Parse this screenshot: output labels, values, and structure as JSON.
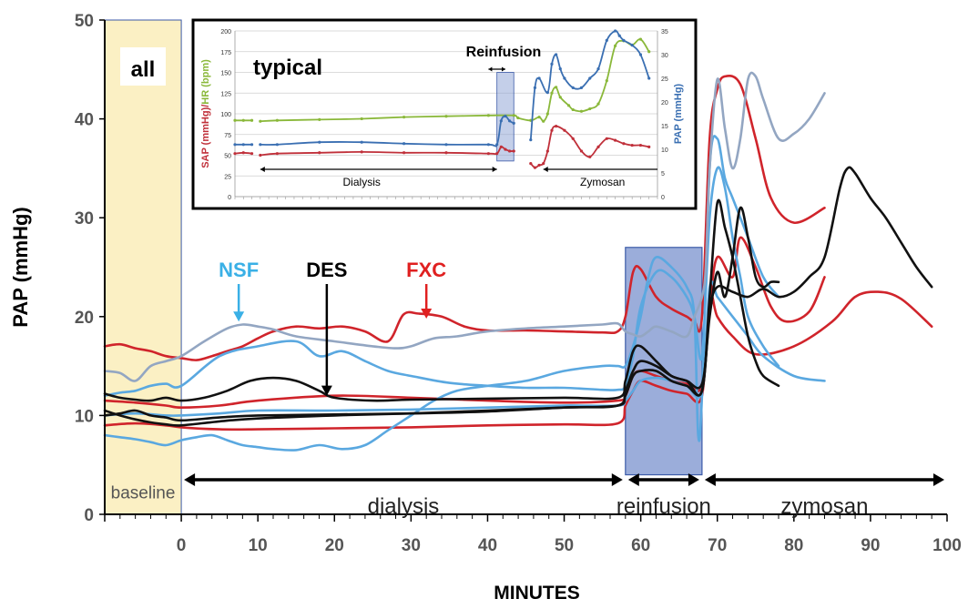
{
  "chart_data": [
    {
      "type": "line",
      "ylabel": "PAP (mmHg)",
      "xlabel": "MINUTES",
      "xlim": [
        -10,
        100
      ],
      "ylim": [
        0,
        50
      ],
      "x_ticks": [
        0,
        10,
        20,
        30,
        40,
        50,
        60,
        70,
        80,
        90,
        100
      ],
      "y_ticks": [
        0,
        10,
        20,
        30,
        40,
        50
      ],
      "grid": false,
      "box_label": "all",
      "regions": [
        {
          "label": "baseline",
          "x_start": -10,
          "x_end": 0,
          "color": "#fbf0c4"
        },
        {
          "label": "reinfusion",
          "x_start": 58,
          "x_end": 68,
          "color": "#8a9fd4"
        }
      ],
      "phases": [
        {
          "label": "dialysis",
          "x_start": 0,
          "x_end": 58,
          "y": 3.5
        },
        {
          "label": "reinfusion",
          "x_start": 58,
          "x_end": 68,
          "y": 3.5
        },
        {
          "label": "zymosan",
          "x_start": 68,
          "x_end": 100,
          "y": 3.5
        }
      ],
      "annotations": [
        {
          "text": "NSF",
          "x": 7.5,
          "y": 19.5,
          "color": "#3ab0e6"
        },
        {
          "text": "DES",
          "x": 19,
          "y": 12,
          "color": "#000000"
        },
        {
          "text": "FXC",
          "x": 32,
          "y": 19.8,
          "color": "#e02020"
        }
      ],
      "series": [
        {
          "group": "FXC",
          "color": "#d0242b",
          "x": [
            -10,
            -8,
            -6,
            -4,
            -2,
            0,
            2,
            4,
            6,
            8,
            10,
            12,
            15,
            18,
            21,
            24,
            27,
            29,
            31,
            34,
            37,
            40,
            45,
            50,
            55,
            57,
            58,
            59,
            60,
            62,
            64,
            66,
            67,
            68,
            69,
            70,
            71,
            73,
            75,
            77,
            80,
            84
          ],
          "y": [
            17.0,
            17.2,
            16.8,
            16.5,
            16.0,
            15.8,
            15.6,
            16.0,
            16.5,
            17.0,
            17.8,
            18.5,
            19.0,
            18.8,
            19.0,
            18.5,
            17.5,
            20.2,
            20.3,
            20.0,
            19.0,
            18.6,
            18.6,
            18.5,
            18.4,
            18.5,
            20.0,
            24.5,
            24.8,
            22.0,
            20.8,
            20.0,
            19.5,
            20.0,
            38.0,
            43.0,
            44.3,
            43.5,
            38.0,
            32.0,
            29.5,
            31.0
          ]
        },
        {
          "group": "FXC",
          "color": "#d0242b",
          "x": [
            -10,
            -6,
            -2,
            0,
            5,
            10,
            20,
            30,
            40,
            50,
            57,
            58,
            59,
            60,
            62,
            64,
            66,
            68,
            69,
            70,
            72,
            73,
            75,
            77,
            79,
            82,
            84
          ],
          "y": [
            11.5,
            11.3,
            11.0,
            10.8,
            11.0,
            11.5,
            12.0,
            11.8,
            11.5,
            11.3,
            11.5,
            12.0,
            14.0,
            14.5,
            14.0,
            13.5,
            13.2,
            13.0,
            21.0,
            26.0,
            24.0,
            28.0,
            25.0,
            21.0,
            19.5,
            20.5,
            24.0
          ]
        },
        {
          "group": "FXC",
          "color": "#d0242b",
          "x": [
            -10,
            -6,
            -2,
            0,
            5,
            10,
            20,
            30,
            40,
            50,
            57,
            58,
            59,
            60,
            62,
            64,
            66,
            68,
            69,
            70,
            72,
            75,
            80,
            85,
            88,
            91,
            94,
            98
          ],
          "y": [
            9.0,
            9.2,
            9.0,
            8.8,
            8.6,
            8.6,
            8.7,
            8.8,
            9.0,
            9.1,
            9.2,
            11.0,
            12.5,
            13.5,
            13.0,
            12.5,
            12.2,
            12.0,
            22.0,
            20.0,
            18.0,
            16.2,
            17.0,
            19.5,
            22.0,
            22.5,
            21.8,
            19.0
          ]
        },
        {
          "group": "NSF",
          "color": "#5aa8e0",
          "x": [
            -10,
            -8,
            -6,
            -4,
            -2,
            0,
            2,
            4,
            6,
            8,
            10,
            12,
            15,
            18,
            21,
            24,
            27,
            30,
            33,
            36,
            40,
            45,
            50,
            55,
            57,
            58,
            59,
            60,
            61,
            62,
            64,
            66,
            67,
            67.5,
            68,
            69,
            70,
            71,
            72,
            74,
            76,
            78
          ],
          "y": [
            8.0,
            7.8,
            7.6,
            7.3,
            7.0,
            7.5,
            7.8,
            8.0,
            7.5,
            7.0,
            6.8,
            6.6,
            6.5,
            7.0,
            6.6,
            7.0,
            8.5,
            10.0,
            11.5,
            12.5,
            13.0,
            13.5,
            14.5,
            15.0,
            15.0,
            15.0,
            17.0,
            20.0,
            24.0,
            26.0,
            25.0,
            23.0,
            20.0,
            8.0,
            12.0,
            35.0,
            38.0,
            34.0,
            32.0,
            28.0,
            24.0,
            22.0
          ]
        },
        {
          "group": "NSF",
          "color": "#5aa8e0",
          "x": [
            -10,
            -8,
            -6,
            -4,
            -2,
            0,
            5,
            10,
            15,
            18,
            21,
            24,
            27,
            30,
            35,
            40,
            45,
            50,
            55,
            57,
            58,
            59,
            60,
            62,
            64,
            66,
            67,
            68,
            69,
            70,
            71,
            72,
            73,
            74,
            76,
            78
          ],
          "y": [
            12.0,
            12.3,
            12.5,
            13.0,
            13.2,
            13.0,
            16.0,
            17.0,
            17.5,
            16.0,
            16.5,
            15.5,
            14.5,
            14.0,
            13.3,
            13.0,
            12.8,
            12.8,
            12.6,
            12.6,
            13.0,
            16.0,
            21.0,
            24.5,
            24.0,
            22.0,
            20.0,
            16.0,
            30.0,
            35.0,
            33.0,
            28.0,
            24.0,
            20.0,
            17.0,
            15.0
          ]
        },
        {
          "group": "NSF",
          "color": "#5aa8e0",
          "x": [
            -10,
            -6,
            -2,
            0,
            5,
            10,
            20,
            30,
            40,
            50,
            57,
            58,
            59,
            60,
            62,
            64,
            66,
            68,
            69,
            70,
            71,
            72,
            74,
            76,
            80,
            84
          ],
          "y": [
            10.0,
            10.2,
            10.0,
            10.0,
            10.2,
            10.5,
            10.5,
            10.6,
            10.8,
            11.0,
            11.0,
            11.5,
            12.5,
            13.5,
            13.8,
            13.5,
            13.0,
            12.5,
            23.0,
            22.0,
            21.0,
            20.0,
            18.0,
            16.0,
            14.0,
            13.5
          ]
        },
        {
          "group": "NSF",
          "color": "#93a6c2",
          "x": [
            -10,
            -8,
            -6,
            -4,
            -2,
            0,
            3,
            6,
            8,
            10,
            12,
            15,
            20,
            25,
            28,
            30,
            33,
            36,
            40,
            45,
            50,
            55,
            57,
            58,
            59,
            60,
            61,
            62,
            64,
            66,
            67,
            68,
            68.5,
            69,
            70,
            71,
            72,
            73,
            74,
            75,
            76,
            78,
            80,
            82,
            84
          ],
          "y": [
            14.5,
            14.3,
            13.5,
            15.0,
            15.5,
            16.0,
            17.5,
            18.8,
            19.2,
            19.0,
            18.7,
            18.0,
            17.5,
            17.0,
            16.8,
            17.0,
            17.8,
            18.0,
            18.5,
            18.8,
            19.0,
            19.2,
            19.3,
            18.5,
            18.2,
            18.0,
            18.5,
            19.0,
            18.5,
            18.0,
            20.0,
            22.0,
            25.0,
            35.0,
            44.0,
            39.0,
            35.0,
            38.0,
            44.0,
            44.3,
            42.0,
            38.0,
            38.5,
            40.0,
            42.6
          ]
        },
        {
          "group": "DES",
          "color": "#111111",
          "x": [
            -10,
            -8,
            -6,
            -4,
            -2,
            0,
            3,
            6,
            9,
            12,
            15,
            18,
            20,
            25,
            30,
            40,
            50,
            57,
            58,
            59,
            60,
            62,
            64,
            66,
            68,
            69,
            70,
            71,
            72,
            73,
            74,
            75,
            76,
            78
          ],
          "y": [
            12.2,
            11.8,
            11.6,
            11.5,
            11.8,
            11.5,
            11.8,
            12.5,
            13.5,
            13.8,
            13.5,
            12.5,
            11.8,
            11.5,
            11.6,
            11.7,
            11.8,
            11.8,
            13.5,
            16.5,
            17.0,
            15.5,
            14.0,
            13.5,
            12.5,
            22.0,
            31.5,
            29.0,
            26.0,
            22.0,
            18.0,
            15.5,
            14.0,
            13.0
          ]
        },
        {
          "group": "DES",
          "color": "#111111",
          "x": [
            -10,
            -8,
            -6,
            -4,
            -2,
            0,
            5,
            10,
            20,
            30,
            40,
            50,
            57,
            58,
            59,
            60,
            62,
            64,
            66,
            68,
            69,
            70,
            71,
            72,
            73,
            74,
            75,
            76,
            77,
            78
          ],
          "y": [
            10.0,
            10.2,
            10.5,
            10.0,
            9.8,
            9.5,
            9.8,
            10.0,
            10.1,
            10.2,
            10.4,
            10.8,
            11.0,
            12.5,
            14.5,
            15.5,
            15.0,
            14.0,
            13.5,
            13.2,
            20.0,
            24.5,
            22.0,
            26.0,
            31.0,
            28.0,
            24.0,
            23.0,
            23.5,
            23.5
          ]
        },
        {
          "group": "DES",
          "color": "#111111",
          "x": [
            -10,
            -8,
            -6,
            -4,
            -2,
            0,
            5,
            10,
            20,
            30,
            40,
            50,
            57,
            58,
            59,
            60,
            62,
            64,
            66,
            68,
            69,
            70,
            72,
            74,
            76,
            78,
            80,
            82,
            84,
            86,
            87,
            88,
            90,
            92,
            94,
            96,
            98
          ],
          "y": [
            10.5,
            10.0,
            9.6,
            9.3,
            9.1,
            9.0,
            9.4,
            9.7,
            10.0,
            10.2,
            10.5,
            10.8,
            11.0,
            12.0,
            14.0,
            14.5,
            14.5,
            13.5,
            13.0,
            12.5,
            20.5,
            23.0,
            22.5,
            22.0,
            22.8,
            22.0,
            22.5,
            24.0,
            26.0,
            33.0,
            35.0,
            34.5,
            32.0,
            30.0,
            27.5,
            25.0,
            23.0
          ]
        }
      ]
    },
    {
      "type": "line",
      "title": "typical",
      "ylabel_left": "SAP (mmHg)/HR (bpm)",
      "ylabel_left_parts": [
        "SAP (mmHg)",
        "/",
        "HR (bpm)"
      ],
      "ylabel_right": "PAP (mmHg)",
      "ylim_left": [
        0,
        200
      ],
      "ylim_right": [
        0,
        35
      ],
      "y_ticks_left": [
        0,
        25,
        50,
        75,
        100,
        125,
        150,
        175,
        200
      ],
      "y_ticks_right": [
        0,
        5,
        10,
        15,
        20,
        25,
        30,
        35
      ],
      "annotations": [
        {
          "text": "Reinfusion",
          "color": "#000000"
        },
        {
          "text": "Dialysis",
          "color": "#000000"
        },
        {
          "text": "Zymosan",
          "color": "#000000"
        }
      ],
      "series": [
        {
          "name": "HR",
          "color": "#8ab83a",
          "axis": "left",
          "x": [
            0,
            2,
            4,
            5,
            6,
            10,
            20,
            30,
            40,
            50,
            60,
            66,
            67,
            70,
            72,
            73,
            74,
            75,
            76,
            77,
            79,
            80,
            82,
            84,
            86,
            88,
            90,
            92,
            94,
            96,
            98
          ],
          "y": [
            92,
            92,
            92,
            null,
            91,
            92,
            93,
            94,
            96,
            97,
            98,
            98,
            95,
            92,
            96,
            91,
            100,
            125,
            132,
            120,
            110,
            105,
            103,
            106,
            112,
            140,
            182,
            188,
            183,
            190,
            175
          ]
        },
        {
          "name": "SAP",
          "color": "#c0303a",
          "axis": "left",
          "x": [
            0,
            2,
            4,
            5,
            6,
            10,
            20,
            30,
            40,
            50,
            60,
            62,
            63,
            64,
            65,
            66,
            67,
            70,
            71,
            72,
            73,
            74,
            75,
            76,
            78,
            80,
            82,
            84,
            86,
            88,
            90,
            92,
            94,
            96,
            98
          ],
          "y": [
            52,
            53,
            52,
            null,
            50,
            52,
            53,
            54,
            53,
            53,
            52,
            52,
            60,
            57,
            55,
            55,
            null,
            40,
            35,
            38,
            40,
            55,
            80,
            85,
            80,
            70,
            55,
            48,
            60,
            70,
            68,
            64,
            62,
            62,
            60
          ]
        },
        {
          "name": "PAP",
          "color": "#3a6fb2",
          "axis": "right",
          "x": [
            0,
            2,
            4,
            5,
            6,
            10,
            20,
            30,
            40,
            50,
            60,
            62,
            63,
            64,
            65,
            66,
            67,
            70,
            71,
            72,
            74,
            75,
            76,
            77,
            78,
            80,
            82,
            84,
            86,
            88,
            90,
            91,
            92,
            94,
            96,
            98
          ],
          "y": [
            11,
            11,
            11,
            null,
            11,
            11,
            11.5,
            11.5,
            11.2,
            11,
            11,
            11,
            16,
            17,
            16,
            15.5,
            null,
            12,
            23,
            25,
            22,
            28,
            30,
            27,
            25,
            23,
            23,
            25,
            27,
            33,
            35,
            34,
            33,
            32,
            30,
            25
          ]
        }
      ]
    }
  ]
}
